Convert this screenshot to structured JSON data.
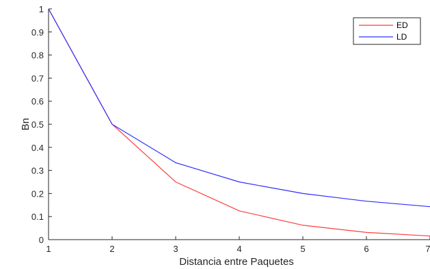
{
  "chart_data": {
    "type": "line",
    "title": "",
    "xlabel": "Distancia entre Paquetes",
    "ylabel": "Bn",
    "x": [
      1,
      2,
      3,
      4,
      5,
      6,
      7
    ],
    "xlim": [
      1,
      7
    ],
    "ylim": [
      0,
      1
    ],
    "xticks": [
      "1",
      "2",
      "3",
      "4",
      "5",
      "6",
      "7"
    ],
    "yticks": [
      "0",
      "0.1",
      "0.2",
      "0.3",
      "0.4",
      "0.5",
      "0.6",
      "0.7",
      "0.8",
      "0.9",
      "1"
    ],
    "grid": false,
    "legend_position": "top-right",
    "series": [
      {
        "name": "ED",
        "color": "#ff3b3b",
        "values": [
          1,
          0.5,
          0.25,
          0.125,
          0.0625,
          0.03125,
          0.015625
        ]
      },
      {
        "name": "LD",
        "color": "#2d2dff",
        "values": [
          1,
          0.5,
          0.3333,
          0.25,
          0.2,
          0.1667,
          0.1429
        ]
      }
    ]
  }
}
